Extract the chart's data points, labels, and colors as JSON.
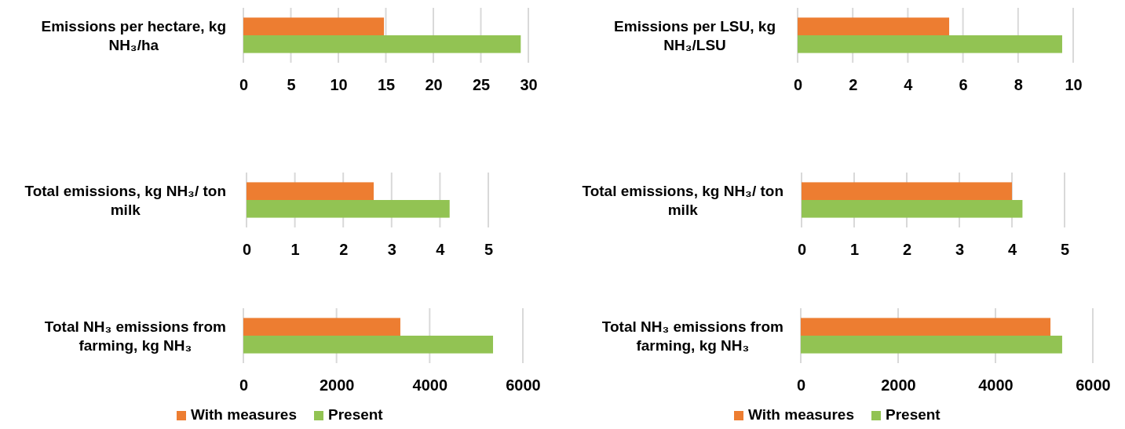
{
  "chart_data": [
    {
      "type": "bar",
      "orientation": "horizontal",
      "categories": [
        "Emissions per hectare, kg NH₃/ha"
      ],
      "series": [
        {
          "color": "#ed7d31",
          "values": [
            14.8
          ]
        },
        {
          "color": "#92c353",
          "values": [
            29.2
          ]
        }
      ],
      "xlim": [
        0,
        30
      ],
      "xticks": [
        0,
        5,
        10,
        15,
        20,
        25,
        30
      ],
      "grid": "x",
      "legend": false
    },
    {
      "type": "bar",
      "orientation": "horizontal",
      "categories": [
        "Emissions per LSU, kg NH₃/LSU"
      ],
      "series": [
        {
          "color": "#ed7d31",
          "values": [
            5.5
          ]
        },
        {
          "color": "#92c353",
          "values": [
            9.6
          ]
        }
      ],
      "xlim": [
        0,
        10
      ],
      "xticks": [
        0,
        2,
        4,
        6,
        8,
        10
      ],
      "grid": "x",
      "legend": false
    },
    {
      "type": "bar",
      "orientation": "horizontal",
      "categories": [
        "Total emissions, kg NH₃/ ton milk"
      ],
      "series": [
        {
          "color": "#ed7d31",
          "values": [
            2.63
          ]
        },
        {
          "color": "#92c353",
          "values": [
            4.2
          ]
        }
      ],
      "xlim": [
        0,
        5
      ],
      "xticks": [
        0,
        1,
        2,
        3,
        4,
        5
      ],
      "grid": "x",
      "legend": false
    },
    {
      "type": "bar",
      "orientation": "horizontal",
      "categories": [
        "Total emissions, kg NH₃/ ton milk"
      ],
      "series": [
        {
          "color": "#ed7d31",
          "values": [
            4.0
          ]
        },
        {
          "color": "#92c353",
          "values": [
            4.2
          ]
        }
      ],
      "xlim": [
        0,
        5
      ],
      "xticks": [
        0,
        1,
        2,
        3,
        4,
        5
      ],
      "grid": "x",
      "legend": false
    },
    {
      "type": "bar",
      "orientation": "horizontal",
      "categories": [
        "Total NH₃ emissions from farming, kg NH₃"
      ],
      "series": [
        {
          "name": "With measures",
          "color": "#ed7d31",
          "values": [
            3370
          ]
        },
        {
          "name": "Present",
          "color": "#92c353",
          "values": [
            5360
          ]
        }
      ],
      "xlim": [
        0,
        6000
      ],
      "xticks": [
        0,
        2000,
        4000,
        6000
      ],
      "grid": "x",
      "legend": "bottom"
    },
    {
      "type": "bar",
      "orientation": "horizontal",
      "categories": [
        "Total NH₃ emissions from farming, kg NH₃"
      ],
      "series": [
        {
          "name": "With measures",
          "color": "#ed7d31",
          "values": [
            5130
          ]
        },
        {
          "name": "Present",
          "color": "#92c353",
          "values": [
            5370
          ]
        }
      ],
      "xlim": [
        0,
        6000
      ],
      "xticks": [
        0,
        2000,
        4000,
        6000
      ],
      "grid": "x",
      "legend": "bottom"
    }
  ]
}
